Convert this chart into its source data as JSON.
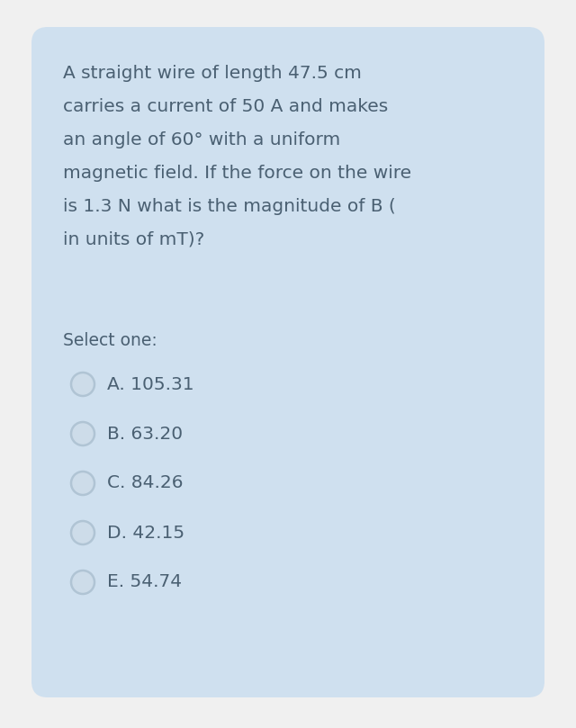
{
  "background_color": "#f0f0f0",
  "card_color": "#cfe0ef",
  "question_text": [
    "A straight wire of length 47.5 cm",
    "carries a current of 50 A and makes",
    "an angle of 60° with a uniform",
    "magnetic field. If the force on the wire",
    "is 1.3 N what is the magnitude of B (",
    "in units of mT)?"
  ],
  "select_label": "Select one:",
  "options": [
    "A. 105.31",
    "B. 63.20",
    "C. 84.26",
    "D. 42.15",
    "E. 54.74"
  ],
  "text_color": "#4a6072",
  "question_font_size": 14.5,
  "option_font_size": 14.5,
  "select_font_size": 13.5,
  "circle_color_outer": "#b0c4d4",
  "circle_color_inner": "#cddce9"
}
